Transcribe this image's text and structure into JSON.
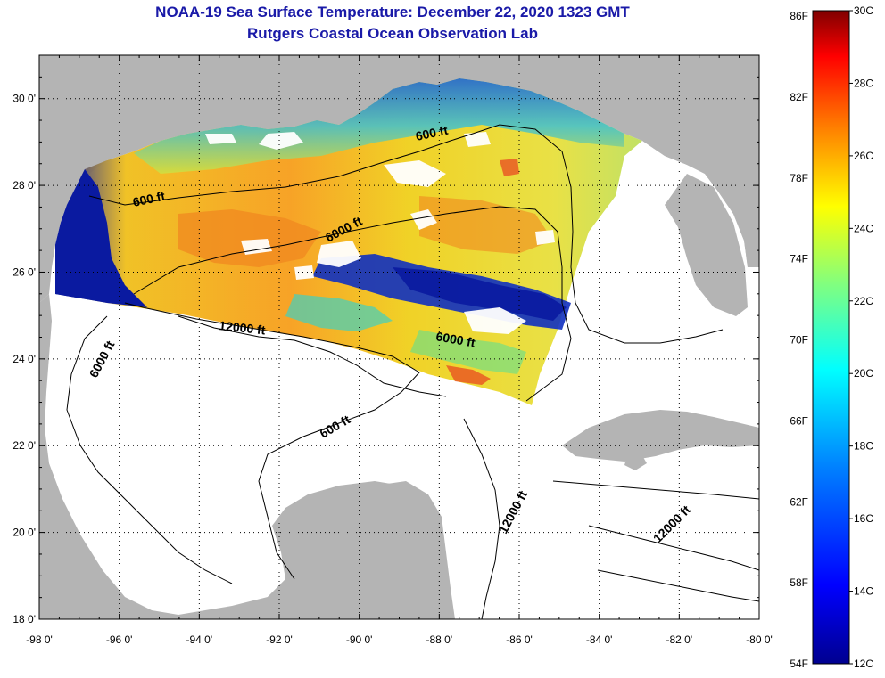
{
  "title": {
    "line1": "NOAA-19 Sea Surface Temperature:  December 22, 2020 1323 GMT",
    "line2": "Rutgers Coastal Ocean Observation Lab"
  },
  "axes": {
    "lat_labels": [
      "30 0'",
      "28 0'",
      "26 0'",
      "24 0'",
      "22 0'",
      "20 0'",
      "18 0'"
    ],
    "lon_labels": [
      "-98 0'",
      "-96 0'",
      "-94 0'",
      "-92 0'",
      "-90 0'",
      "-88 0'",
      "-86 0'",
      "-84 0'",
      "-82 0'",
      "-80 0'"
    ],
    "lat_range": [
      18,
      31
    ],
    "lon_range": [
      -98,
      -80
    ]
  },
  "contours": {
    "c1": "600 ft",
    "c2": "600 ft",
    "c3": "6000 ft",
    "c4": "12000 ft",
    "c5": "6000 ft",
    "c6": "6000 ft",
    "c7": "600 ft",
    "c8": "12000 ft",
    "c9": "12000 ft"
  },
  "colorbar": {
    "fahrenheit": [
      "86F",
      "82F",
      "78F",
      "74F",
      "70F",
      "66F",
      "62F",
      "58F",
      "54F"
    ],
    "celsius": [
      "30C",
      "28C",
      "26C",
      "24C",
      "22C",
      "20C",
      "18C",
      "16C",
      "14C",
      "12C"
    ],
    "range_c": [
      12,
      30
    ],
    "colors": [
      "#00008f",
      "#0000ff",
      "#0080ff",
      "#00ffff",
      "#80ff80",
      "#ffff00",
      "#ff8000",
      "#ff0000",
      "#800000"
    ]
  },
  "colors": {
    "land": "#b4b4b4",
    "ocean": "#ffffff",
    "title": "#1a1aa8"
  }
}
